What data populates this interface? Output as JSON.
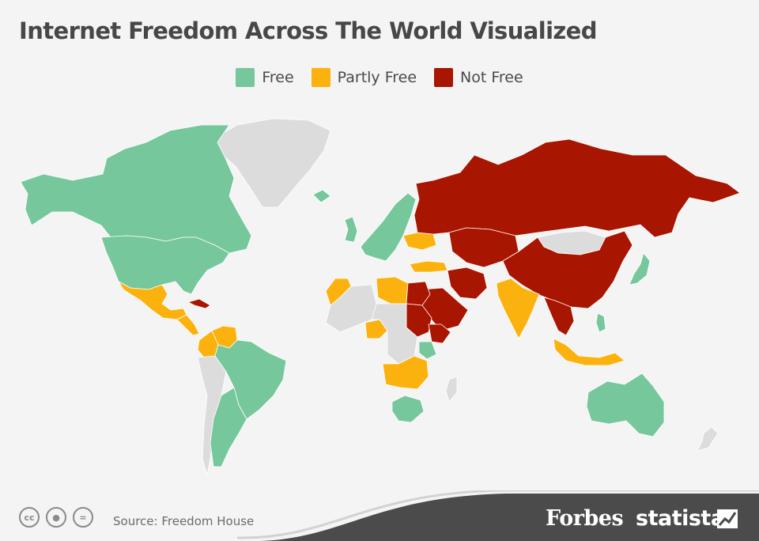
{
  "title": "Internet Freedom Across The World Visualized",
  "legend": [
    {
      "label": "Free",
      "color": "#76c79b"
    },
    {
      "label": "Partly Free",
      "color": "#fbb20e"
    },
    {
      "label": "Not Free",
      "color": "#a81500"
    }
  ],
  "colors": {
    "free": "#76c79b",
    "partly_free": "#fbb20e",
    "not_free": "#a81500",
    "no_data": "#dcdcdc",
    "background": "#f4f4f4",
    "footer_band": "#4b4b4b"
  },
  "footer": {
    "source": "Source: Freedom House",
    "brand_forbes": "Forbes",
    "brand_statista": "statista",
    "license_icons": [
      "cc-icon",
      "attribution-icon",
      "no-derivatives-icon"
    ]
  },
  "map": {
    "region_status": {
      "greenland": "no_data",
      "canada": "free",
      "usa": "free",
      "mexico": "partly_free",
      "cuba": "not_free",
      "central-america": "partly_free",
      "venezuela": "partly_free",
      "colombia": "partly_free",
      "brazil": "free",
      "argentina": "free",
      "chile-peru": "no_data",
      "iceland": "free",
      "uk": "free",
      "western-europe": "free",
      "ukraine": "partly_free",
      "turkey": "partly_free",
      "russia": "not_free",
      "kazakhstan-central-asia": "not_free",
      "china": "not_free",
      "mongolia": "no_data",
      "iran": "not_free",
      "saudi-arabia": "not_free",
      "egypt": "not_free",
      "sudan": "not_free",
      "ethiopia": "not_free",
      "libya": "partly_free",
      "morocco": "partly_free",
      "nigeria": "partly_free",
      "kenya": "free",
      "angola-zambia": "partly_free",
      "south-africa": "free",
      "india": "partly_free",
      "southeast-asia": "not_free",
      "indonesia": "partly_free",
      "philippines": "free",
      "japan": "free",
      "australia": "free",
      "new-zealand": "no_data",
      "madagascar": "no_data",
      "west-africa": "no_data",
      "central-africa": "no_data"
    }
  }
}
